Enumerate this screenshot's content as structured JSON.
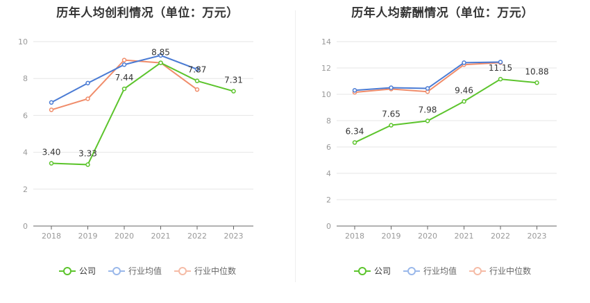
{
  "charts": [
    {
      "title": "历年人均创利情况（单位：万元）",
      "legend": {
        "company": "公司",
        "industry_avg": "行业均值",
        "industry_median": "行业中位数"
      }
    },
    {
      "title": "历年人均薪酬情况（单位：万元）",
      "legend": {
        "company": "公司",
        "industry_avg": "行业均值",
        "industry_median": "行业中位数"
      }
    }
  ],
  "colors": {
    "company": "#5cc42c",
    "industry_avg": "#4a7bd4",
    "industry_median": "#f08c6a"
  },
  "legend_colors": {
    "company": "#5cc42c",
    "industry_avg": "#9ab8ea",
    "industry_median": "#f5bba6"
  },
  "chart_data": [
    {
      "type": "line",
      "title": "历年人均创利情况（单位：万元）",
      "categories": [
        "2018",
        "2019",
        "2020",
        "2021",
        "2022",
        "2023"
      ],
      "ylim": [
        0,
        10
      ],
      "yticks": [
        0,
        2,
        4,
        6,
        8,
        10
      ],
      "grid": true,
      "legend_position": "bottom",
      "series": [
        {
          "name": "公司",
          "key": "company",
          "values": [
            3.4,
            3.33,
            7.44,
            8.85,
            7.87,
            7.31
          ],
          "labels": [
            "3.40",
            "3.33",
            "7.44",
            "8.85",
            "7.87",
            "7.31"
          ]
        },
        {
          "name": "行业均值",
          "key": "industry_avg",
          "values": [
            6.7,
            7.75,
            8.75,
            9.25,
            8.5,
            null
          ]
        },
        {
          "name": "行业中位数",
          "key": "industry_median",
          "values": [
            6.3,
            6.9,
            9.0,
            8.85,
            7.4,
            null
          ]
        }
      ]
    },
    {
      "type": "line",
      "title": "历年人均薪酬情况（单位：万元）",
      "categories": [
        "2018",
        "2019",
        "2020",
        "2021",
        "2022",
        "2023"
      ],
      "ylim": [
        0,
        14
      ],
      "yticks": [
        0,
        2,
        4,
        6,
        8,
        10,
        12,
        14
      ],
      "grid": true,
      "legend_position": "bottom",
      "series": [
        {
          "name": "公司",
          "key": "company",
          "values": [
            6.34,
            7.65,
            7.98,
            9.46,
            11.15,
            10.88
          ],
          "labels": [
            "6.34",
            "7.65",
            "7.98",
            "9.46",
            "11.15",
            "10.88"
          ]
        },
        {
          "name": "行业均值",
          "key": "industry_avg",
          "values": [
            10.3,
            10.5,
            10.45,
            12.4,
            12.45,
            null
          ]
        },
        {
          "name": "行业中位数",
          "key": "industry_median",
          "values": [
            10.15,
            10.4,
            10.2,
            12.25,
            12.4,
            null
          ]
        }
      ]
    }
  ]
}
